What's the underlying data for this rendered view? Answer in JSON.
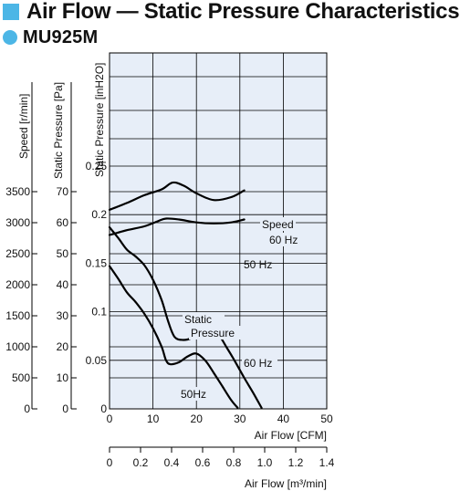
{
  "title": "Air Flow — Static Pressure Characteristics",
  "model": "MU925M",
  "colors": {
    "accent": "#4cb6e6",
    "plot_bg": "#e7eef8",
    "grid": "#000000",
    "curve": "#000000"
  },
  "chart_data": {
    "type": "line",
    "title": "Air Flow — Static Pressure Characteristics",
    "subtitle": "MU925M",
    "x_axes": {
      "cfm": {
        "label": "Air Flow [CFM]",
        "range": [
          0,
          50
        ],
        "ticks": [
          0,
          10,
          20,
          30,
          40,
          50
        ]
      },
      "m3min": {
        "label": "Air Flow [m³/min]",
        "range": [
          0,
          1.4
        ],
        "ticks": [
          0,
          0.2,
          0.4,
          0.6,
          0.8,
          1.0,
          1.2,
          1.4
        ],
        "tick_labels": [
          "0",
          "0.2",
          "0.4",
          "0.6",
          "0.8",
          "1.0",
          "1.2",
          "1.4"
        ]
      }
    },
    "y_axes": {
      "speed": {
        "label": "Speed [r/min]",
        "range": [
          0,
          3500
        ],
        "ticks": [
          0,
          500,
          1000,
          1500,
          2000,
          2500,
          3000,
          3500
        ]
      },
      "pa": {
        "label": "Static Pressure [Pa]",
        "range": [
          0,
          70
        ],
        "ticks": [
          0,
          10,
          20,
          30,
          40,
          50,
          60,
          70
        ]
      },
      "inh2o": {
        "label": "Static Pressure [inH2O]",
        "range": [
          0,
          0.25
        ],
        "ticks": [
          0,
          0.05,
          0.1,
          0.15,
          0.2,
          0.25
        ]
      }
    },
    "annotations": {
      "speed": "Speed",
      "speed_60": "60 Hz",
      "speed_50": "50 Hz",
      "static_1": "Static",
      "static_2": "Pressure",
      "sp_60": "60 Hz",
      "sp_50": "50Hz"
    },
    "series": [
      {
        "label_key": "speed_60",
        "axis": "inh2o",
        "x": [
          0,
          4,
          8,
          12,
          14.5,
          17,
          20,
          24,
          28,
          31
        ],
        "y": [
          0.205,
          0.212,
          0.22,
          0.226,
          0.233,
          0.23,
          0.222,
          0.215,
          0.218,
          0.225
        ]
      },
      {
        "label_key": "speed_50",
        "axis": "inh2o",
        "x": [
          0,
          4,
          8,
          11,
          13,
          16,
          20,
          24,
          28,
          31
        ],
        "y": [
          0.179,
          0.184,
          0.188,
          0.193,
          0.196,
          0.195,
          0.192,
          0.191,
          0.192,
          0.195
        ]
      },
      {
        "label_key": "sp_60",
        "axis": "inh2o",
        "x": [
          0,
          2,
          4,
          6,
          8,
          10,
          12,
          13.5,
          15,
          17,
          19,
          21,
          23,
          25,
          27,
          29,
          31,
          33,
          35
        ],
        "y": [
          0.187,
          0.176,
          0.164,
          0.157,
          0.148,
          0.133,
          0.112,
          0.09,
          0.074,
          0.071,
          0.073,
          0.078,
          0.081,
          0.077,
          0.063,
          0.048,
          0.032,
          0.017,
          0.001
        ]
      },
      {
        "label_key": "sp_50",
        "axis": "inh2o",
        "x": [
          0,
          2,
          4,
          6,
          8,
          10,
          12,
          13,
          14,
          16,
          18,
          20,
          22,
          24,
          26,
          28,
          29.5
        ],
        "y": [
          0.147,
          0.134,
          0.12,
          0.11,
          0.098,
          0.083,
          0.064,
          0.05,
          0.046,
          0.048,
          0.054,
          0.057,
          0.05,
          0.037,
          0.023,
          0.009,
          0.001
        ]
      }
    ]
  }
}
